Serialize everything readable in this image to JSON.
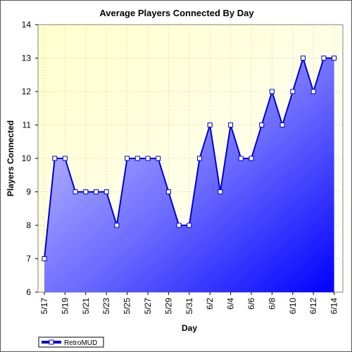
{
  "chart_data": {
    "type": "area",
    "title": "Average Players Connected By Day",
    "xlabel": "Day",
    "ylabel": "Players Connected",
    "ylim": [
      6,
      14
    ],
    "y_ticks": [
      "6",
      "7",
      "8",
      "9",
      "10",
      "11",
      "12",
      "13",
      "14"
    ],
    "x_tick_labels": [
      "5/17",
      "5/19",
      "5/21",
      "5/23",
      "5/25",
      "5/27",
      "5/29",
      "5/31",
      "6/2",
      "6/4",
      "6/6",
      "6/8",
      "6/10",
      "6/12",
      "6/14"
    ],
    "x": [
      "5/17",
      "5/18",
      "5/19",
      "5/20",
      "5/21",
      "5/22",
      "5/23",
      "5/24",
      "5/25",
      "5/26",
      "5/27",
      "5/28",
      "5/29",
      "5/30",
      "5/31",
      "6/1",
      "6/2",
      "6/3",
      "6/4",
      "6/5",
      "6/6",
      "6/7",
      "6/8",
      "6/9",
      "6/10",
      "6/11",
      "6/12",
      "6/13",
      "6/14"
    ],
    "series": [
      {
        "name": "RetroMUD",
        "values": [
          7,
          10,
          10,
          9,
          9,
          9,
          9,
          8,
          10,
          10,
          10,
          10,
          9,
          8,
          8,
          10,
          11,
          9,
          11,
          10,
          10,
          11,
          12,
          11,
          12,
          13,
          12,
          13,
          13
        ]
      }
    ],
    "grid": true,
    "legend_position": "bottom-left",
    "colors": {
      "plot_background_top": "#ffffe0",
      "line": "#0000cc",
      "fill_light": "#d0d0ff",
      "fill_dark": "#0000ff",
      "marker_fill": "#ffffff",
      "grid": "#c8c8a0"
    }
  }
}
